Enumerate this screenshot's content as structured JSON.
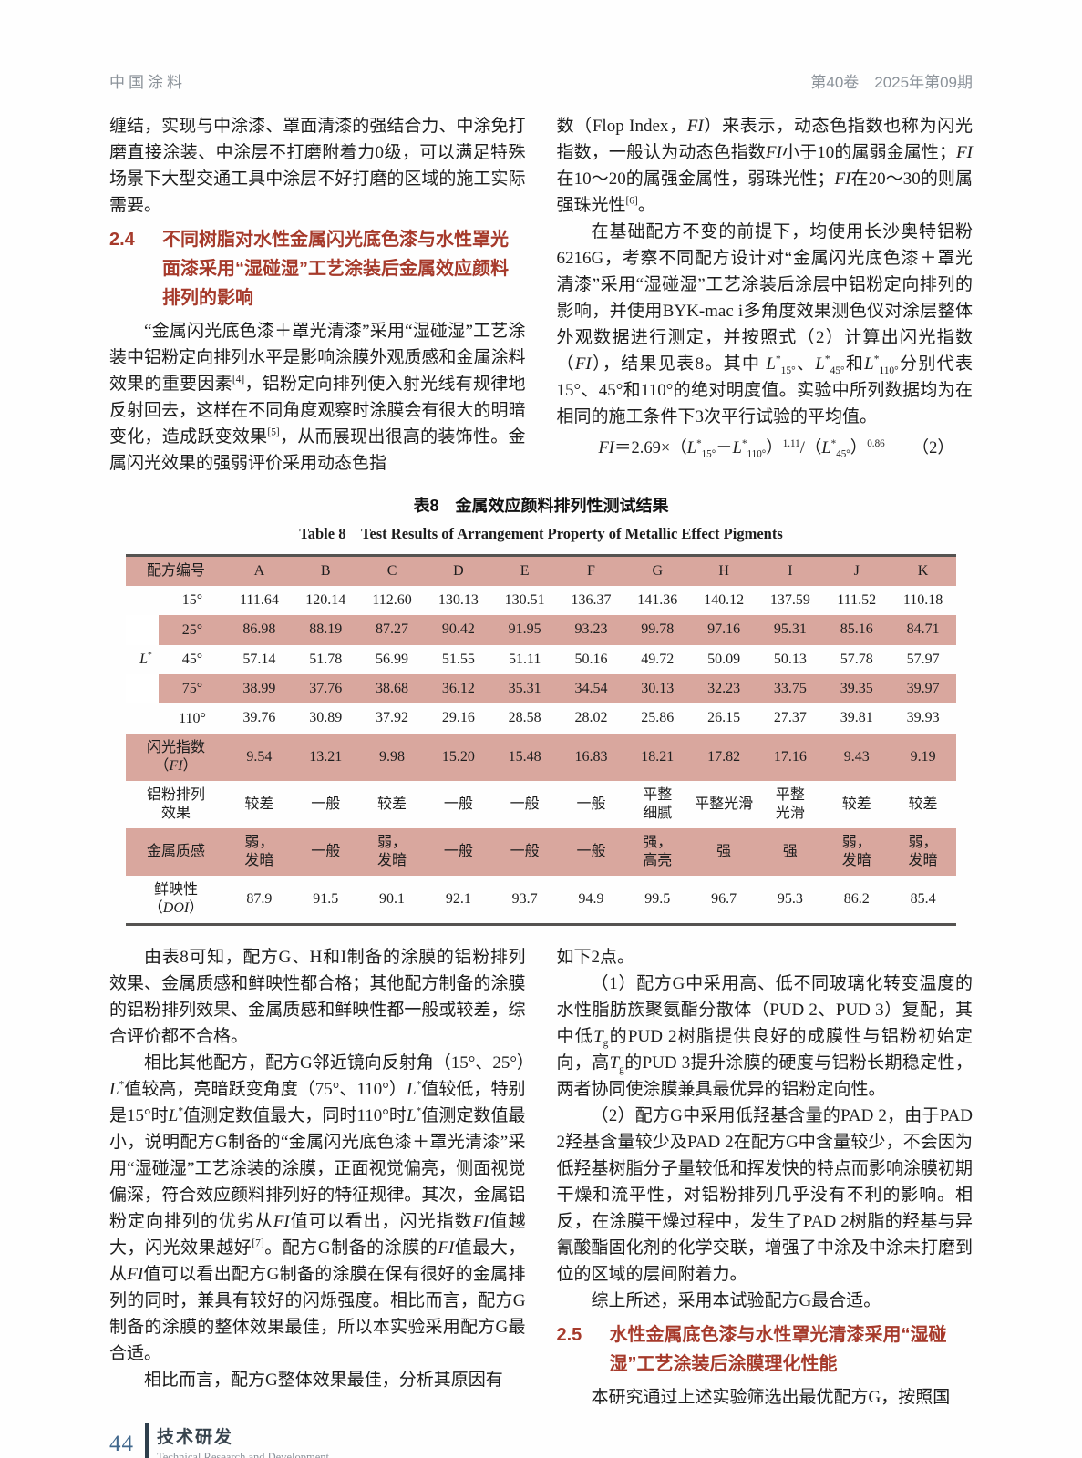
{
  "colors": {
    "accent_red": "#a63a2b",
    "table_pink": "#d9a79e",
    "running_head_gray": "#8b9299",
    "footer_blue": "#40678c",
    "footer_dark_slate": "#2e3f4c",
    "rule_dark": "#555351"
  },
  "header": {
    "journal": "中国涂料",
    "issue": "第40卷　2025年第09期"
  },
  "top_left": {
    "p1": "缠结，实现与中涂漆、罩面清漆的强结合力、中涂免打磨直接涂装、中涂层不打磨附着力0级，可以满足特殊场景下大型交通工具中涂层不好打磨的区域的施工实际需要。",
    "heading": {
      "num": "2.4",
      "title": "不同树脂对水性金属闪光底色漆与水性罩光面漆采用“湿碰湿”工艺涂装后金属效应颜料排列的影响"
    },
    "p2_html": "“金属闪光底色漆＋罩光清漆”采用“湿碰湿”工艺涂装中铝粉定向排列水平是影响涂膜外观质感和金属涂料效果的重要因素<sup>[4]</sup>，铝粉定向排列使入射光线有规律地反射回去，这样在不同角度观察时涂膜会有很大的明暗变化，造成跃变效果<sup>[5]</sup>，从而展现出很高的装饰性。金属闪光效果的强弱评价采用动态色指"
  },
  "top_right": {
    "p1_html": "数（Flop Index，<i>FI</i>）来表示，动态色指数也称为闪光指数，一般认为动态色指数<i>FI</i>小于10的属弱金属性；<i>FI</i>在10～20的属强金属性，弱珠光性；<i>FI</i>在20～30的则属强珠光性<sup>[6]</sup>。",
    "p2_html": "在基础配方不变的前提下，均使用长沙奥特铝粉6216G，考察不同配方设计对“金属闪光底色漆＋罩光清漆”采用“湿碰湿”工艺涂装后涂层中铝粉定向排列的影响，并使用BYK-mac i多角度效果测色仪对涂层整体外观数据进行测定，并按照式（2）计算出闪光指数（<i>FI</i>），结果见表8。其中 <i>L</i><sup>*</sup><sub>15°</sub>、<i>L</i><sup>*</sup><sub>45°</sub>和<i>L</i><sup>*</sup><sub>110°</sub>分别代表15°、45°和110°的绝对明度值。实验中所列数据均为在相同的施工条件下3次平行试验的平均值。",
    "formula_html": "<i>FI</i>＝2.69×（<i>L</i><sup>*</sup><sub>15°</sub>－<i>L</i><sup>*</sup><sub>110°</sub>）<sup>1.11</sup>/（<i>L</i><sup>*</sup><sub>45°</sub>）<sup>0.86</sup>",
    "formula_no": "（2）"
  },
  "table": {
    "caption_zh": "表8　金属效应颜料排列性测试结果",
    "caption_en": "Table 8　Test Results of Arrangement Property of Metallic Effect Pigments",
    "header_label": "配方编号",
    "header_cols": [
      "A",
      "B",
      "C",
      "D",
      "E",
      "F",
      "G",
      "H",
      "I",
      "J",
      "K"
    ],
    "lstar_html": "<i>L</i><sup>*</sup>",
    "r15": {
      "l": "15°",
      "v": [
        "111.64",
        "120.14",
        "112.60",
        "130.13",
        "130.51",
        "136.37",
        "141.36",
        "140.12",
        "137.59",
        "111.52",
        "110.18"
      ]
    },
    "r25": {
      "l": "25°",
      "v": [
        "86.98",
        "88.19",
        "87.27",
        "90.42",
        "91.95",
        "93.23",
        "99.78",
        "97.16",
        "95.31",
        "85.16",
        "84.71"
      ]
    },
    "r45": {
      "l": "45°",
      "v": [
        "57.14",
        "51.78",
        "56.99",
        "51.55",
        "51.11",
        "50.16",
        "49.72",
        "50.09",
        "50.13",
        "57.78",
        "57.97"
      ]
    },
    "r75": {
      "l": "75°",
      "v": [
        "38.99",
        "37.76",
        "38.68",
        "36.12",
        "35.31",
        "34.54",
        "30.13",
        "32.23",
        "33.75",
        "39.35",
        "39.97"
      ]
    },
    "r110": {
      "l": "110°",
      "v": [
        "39.76",
        "30.89",
        "37.92",
        "29.16",
        "28.58",
        "28.02",
        "25.86",
        "26.15",
        "27.37",
        "39.81",
        "39.93"
      ]
    },
    "rfi": {
      "l_html": "闪光指数<br>（<i>FI</i>）",
      "v": [
        "9.54",
        "13.21",
        "9.98",
        "15.20",
        "15.48",
        "16.83",
        "18.21",
        "17.82",
        "17.16",
        "9.43",
        "9.19"
      ]
    },
    "rar": {
      "l": "铝粉排列\n效果",
      "v": [
        "较差",
        "一般",
        "较差",
        "一般",
        "一般",
        "一般",
        "平整\n细腻",
        "平整光滑",
        "平整\n光滑",
        "较差",
        "较差"
      ]
    },
    "rmt": {
      "l": "金属质感",
      "v": [
        "弱，\n发暗",
        "一般",
        "弱，\n发暗",
        "一般",
        "一般",
        "一般",
        "强，\n高亮",
        "强",
        "强",
        "弱，\n发暗",
        "弱，\n发暗"
      ]
    },
    "rdoi": {
      "l_html": "鲜映性<br>（<i>DOI</i>）",
      "v": [
        "87.9",
        "91.5",
        "90.1",
        "92.1",
        "93.7",
        "94.9",
        "99.5",
        "96.7",
        "95.3",
        "86.2",
        "85.4"
      ]
    }
  },
  "bottom_left": {
    "p1": "由表8可知，配方G、H和I制备的涂膜的铝粉排列效果、金属质感和鲜映性都合格；其他配方制备的涂膜的铝粉排列效果、金属质感和鲜映性都一般或较差，综合评价都不合格。",
    "p2_html": "相比其他配方，配方G邻近镜向反射角（15°、25°）<i>L</i><sup>*</sup>值较高，亮暗跃变角度（75°、110°）<i>L</i><sup>*</sup>值较低，特别是15°时<i>L</i><sup>*</sup>值测定数值最大，同时110°时<i>L</i><sup>*</sup>值测定数值最小，说明配方G制备的“金属闪光底色漆＋罩光清漆”采用“湿碰湿”工艺涂装的涂膜，正面视觉偏亮，侧面视觉偏深，符合效应颜料排列好的特征规律。其次，金属铝粉定向排列的优劣从<i>FI</i>值可以看出，闪光指数<i>FI</i>值越大，闪光效果越好<sup>[7]</sup>。配方G制备的涂膜的<i>FI</i>值最大，从<i>FI</i>值可以看出配方G制备的涂膜在保有很好的金属排列的同时，兼具有较好的闪烁强度。相比而言，配方G制备的涂膜的整体效果最佳，所以本实验采用配方G最合适。",
    "p3": "相比而言，配方G整体效果最佳，分析其原因有"
  },
  "bottom_right": {
    "p1": "如下2点。",
    "p2_html": "（1）配方G中采用高、低不同玻璃化转变温度的水性脂肪族聚氨酯分散体（PUD 2、PUD 3）复配，其中低<i>T</i><sub>g</sub>的PUD 2树脂提供良好的成膜性与铝粉初始定向，高<i>T</i><sub>g</sub>的PUD 3提升涂膜的硬度与铝粉长期稳定性，两者协同使涂膜兼具最优异的铝粉定向性。",
    "p3": "（2）配方G中采用低羟基含量的PAD 2，由于PAD 2羟基含量较少及PAD 2在配方G中含量较少，不会因为低羟基树脂分子量较低和挥发快的特点而影响涂膜初期干燥和流平性，对铝粉排列几乎没有不利的影响。相反，在涂膜干燥过程中，发生了PAD 2树脂的羟基与异氰酸酯固化剂的化学交联，增强了中涂及中涂未打磨到位的区域的层间附着力。",
    "p4": "综上所述，采用本试验配方G最合适。",
    "heading": {
      "num": "2.5",
      "title": "水性金属底色漆与水性罩光清漆采用“湿碰湿”工艺涂装后涂膜理化性能"
    },
    "p5": "本研究通过上述实验筛选出最优配方G，按照国"
  },
  "footer": {
    "page_number": "44",
    "section_zh": "技术研发",
    "section_en": "Technical Research and Development"
  }
}
